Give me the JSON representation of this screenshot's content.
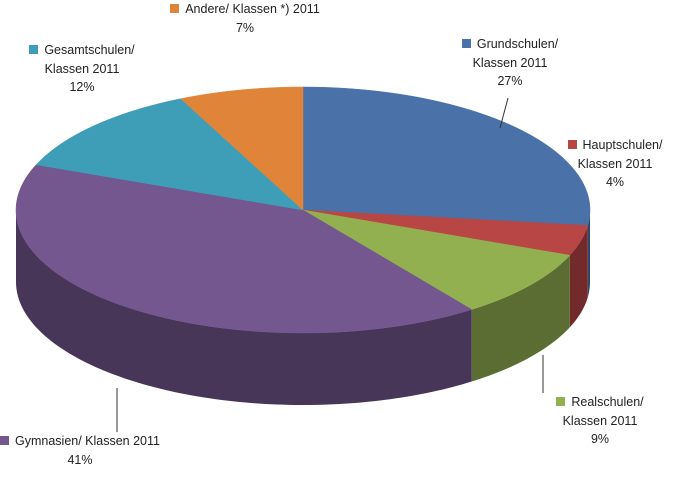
{
  "chart_data": {
    "type": "pie",
    "categories": [
      "Grundschulen/ Klassen 2011",
      "Hauptschulen/ Klassen 2011",
      "Realschulen/ Klassen 2011",
      "Gymnasien/ Klassen 2011",
      "Gesamtschulen/ Klassen 2011",
      "Andere/ Klassen *) 2011"
    ],
    "values": [
      27,
      4,
      9,
      41,
      12,
      7
    ],
    "value_labels": [
      "27%",
      "4%",
      "9%",
      "41%",
      "12%",
      "7%"
    ],
    "colors": [
      "#4a71a8",
      "#b84644",
      "#93b050",
      "#74578f",
      "#3e9eb8",
      "#e0843a"
    ]
  }
}
